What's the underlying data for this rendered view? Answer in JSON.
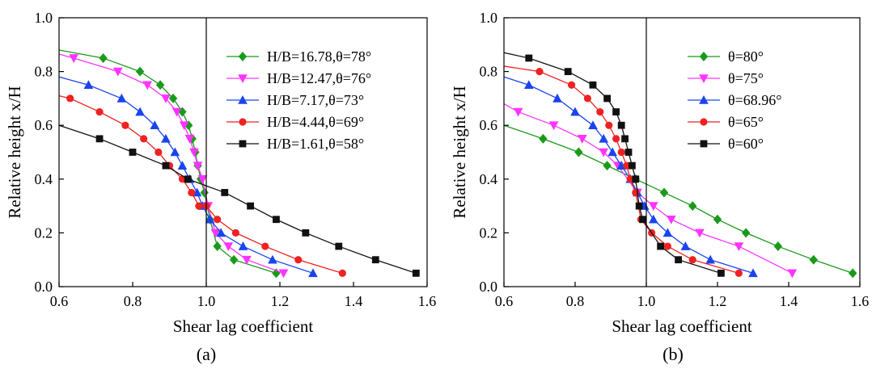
{
  "chart_data": [
    {
      "type": "line",
      "caption": "(a)",
      "xlabel": "Shear lag coefficient",
      "ylabel": "Relative height x/H",
      "xlim": [
        0.6,
        1.6
      ],
      "ylim": [
        0.0,
        1.0
      ],
      "xticks": [
        "0.6",
        "0.8",
        "1.0",
        "1.2",
        "1.4",
        "1.6"
      ],
      "yticks": [
        "0.0",
        "0.2",
        "0.4",
        "0.6",
        "0.8",
        "1.0"
      ],
      "reference_line_x": 1.0,
      "grid": false,
      "legend_position": "top-right",
      "series": [
        {
          "name": "H/B=16.78,θ=78°",
          "color": "#1a9a1a",
          "marker": "diamond",
          "x": [
            0.6,
            0.72,
            0.82,
            0.875,
            0.91,
            0.935,
            0.952,
            0.962,
            0.97,
            0.977,
            0.985,
            0.995,
            1.01,
            1.03,
            1.075,
            1.19
          ],
          "y": [
            0.88,
            0.85,
            0.8,
            0.75,
            0.7,
            0.65,
            0.6,
            0.55,
            0.5,
            0.45,
            0.4,
            0.35,
            0.25,
            0.15,
            0.1,
            0.05
          ],
          "marked": [
            false,
            true,
            true,
            true,
            true,
            true,
            true,
            true,
            true,
            true,
            true,
            true,
            true,
            true,
            true,
            true
          ]
        },
        {
          "name": "H/B=12.47,θ=76°",
          "color": "#ff33ff",
          "marker": "triangle-down",
          "x": [
            0.6,
            0.64,
            0.76,
            0.84,
            0.89,
            0.92,
            0.94,
            0.955,
            0.967,
            0.977,
            0.99,
            1.005,
            1.025,
            1.06,
            1.11,
            1.21
          ],
          "y": [
            0.865,
            0.85,
            0.8,
            0.75,
            0.7,
            0.65,
            0.6,
            0.55,
            0.5,
            0.45,
            0.4,
            0.3,
            0.2,
            0.15,
            0.1,
            0.05
          ],
          "marked": [
            false,
            true,
            true,
            true,
            true,
            true,
            true,
            true,
            true,
            true,
            true,
            true,
            true,
            true,
            true,
            true
          ]
        },
        {
          "name": "H/B=7.17,θ=73°",
          "color": "#1a44ee",
          "marker": "triangle-up",
          "x": [
            0.6,
            0.68,
            0.77,
            0.82,
            0.86,
            0.89,
            0.915,
            0.935,
            0.955,
            0.975,
            0.99,
            1.01,
            1.04,
            1.1,
            1.18,
            1.29
          ],
          "y": [
            0.78,
            0.75,
            0.7,
            0.65,
            0.6,
            0.55,
            0.5,
            0.45,
            0.4,
            0.35,
            0.3,
            0.25,
            0.2,
            0.15,
            0.1,
            0.05
          ],
          "marked": [
            false,
            true,
            true,
            true,
            true,
            true,
            true,
            true,
            true,
            true,
            true,
            true,
            true,
            true,
            true,
            true
          ]
        },
        {
          "name": "H/B=4.44,θ=69°",
          "color": "#ee2222",
          "marker": "circle",
          "x": [
            0.6,
            0.63,
            0.71,
            0.78,
            0.83,
            0.87,
            0.9,
            0.935,
            0.96,
            0.98,
            1.0,
            1.03,
            1.08,
            1.16,
            1.25,
            1.37
          ],
          "y": [
            0.71,
            0.7,
            0.65,
            0.6,
            0.55,
            0.5,
            0.45,
            0.4,
            0.35,
            0.3,
            0.3,
            0.25,
            0.2,
            0.15,
            0.1,
            0.05
          ],
          "marked": [
            false,
            true,
            true,
            true,
            true,
            true,
            true,
            true,
            true,
            true,
            true,
            true,
            true,
            true,
            true,
            true
          ]
        },
        {
          "name": "H/B=1.61,θ=58°",
          "color": "#111111",
          "marker": "square",
          "x": [
            0.6,
            0.71,
            0.8,
            0.89,
            0.95,
            1.05,
            1.12,
            1.19,
            1.27,
            1.36,
            1.46,
            1.57
          ],
          "y": [
            0.6,
            0.55,
            0.5,
            0.45,
            0.4,
            0.35,
            0.3,
            0.25,
            0.2,
            0.15,
            0.1,
            0.05
          ],
          "marked": [
            false,
            true,
            true,
            true,
            true,
            true,
            true,
            true,
            true,
            true,
            true,
            true
          ]
        }
      ]
    },
    {
      "type": "line",
      "caption": "(b)",
      "xlabel": "Shear lag coefficient",
      "ylabel": "Relative height x/H",
      "xlim": [
        0.6,
        1.6
      ],
      "ylim": [
        0.0,
        1.0
      ],
      "xticks": [
        "0.6",
        "0.8",
        "1.0",
        "1.2",
        "1.4",
        "1.6"
      ],
      "yticks": [
        "0.0",
        "0.2",
        "0.4",
        "0.6",
        "0.8",
        "1.0"
      ],
      "reference_line_x": 1.0,
      "grid": false,
      "legend_position": "top-right",
      "series": [
        {
          "name": "θ=80°",
          "color": "#1a9a1a",
          "marker": "diamond",
          "x": [
            0.6,
            0.71,
            0.81,
            0.89,
            0.97,
            1.05,
            1.13,
            1.2,
            1.28,
            1.37,
            1.47,
            1.58
          ],
          "y": [
            0.6,
            0.55,
            0.5,
            0.45,
            0.4,
            0.35,
            0.3,
            0.25,
            0.2,
            0.15,
            0.1,
            0.05
          ],
          "marked": [
            false,
            true,
            true,
            true,
            true,
            true,
            true,
            true,
            true,
            true,
            true,
            true
          ]
        },
        {
          "name": "θ=75°",
          "color": "#ff33ff",
          "marker": "triangle-down",
          "x": [
            0.6,
            0.64,
            0.74,
            0.82,
            0.88,
            0.92,
            0.975,
            1.02,
            1.07,
            1.15,
            1.26,
            1.41
          ],
          "y": [
            0.68,
            0.65,
            0.6,
            0.55,
            0.5,
            0.45,
            0.35,
            0.3,
            0.25,
            0.2,
            0.15,
            0.05
          ],
          "marked": [
            false,
            true,
            true,
            true,
            true,
            true,
            true,
            true,
            true,
            true,
            true,
            true
          ]
        },
        {
          "name": "θ=68.96°",
          "color": "#1a44ee",
          "marker": "triangle-up",
          "x": [
            0.6,
            0.67,
            0.75,
            0.8,
            0.85,
            0.88,
            0.905,
            0.93,
            0.955,
            0.975,
            0.995,
            1.02,
            1.06,
            1.11,
            1.18,
            1.3
          ],
          "y": [
            0.78,
            0.75,
            0.7,
            0.65,
            0.6,
            0.55,
            0.5,
            0.45,
            0.4,
            0.35,
            0.3,
            0.25,
            0.2,
            0.15,
            0.1,
            0.05
          ],
          "marked": [
            false,
            true,
            true,
            true,
            true,
            true,
            true,
            true,
            true,
            true,
            true,
            true,
            true,
            true,
            true,
            true
          ]
        },
        {
          "name": "θ=65°",
          "color": "#ee2222",
          "marker": "circle",
          "x": [
            0.6,
            0.7,
            0.79,
            0.835,
            0.87,
            0.895,
            0.915,
            0.93,
            0.945,
            0.955,
            0.97,
            0.985,
            1.015,
            1.06,
            1.13,
            1.26
          ],
          "y": [
            0.82,
            0.8,
            0.75,
            0.7,
            0.65,
            0.6,
            0.55,
            0.5,
            0.45,
            0.4,
            0.35,
            0.25,
            0.2,
            0.15,
            0.1,
            0.05
          ],
          "marked": [
            false,
            true,
            true,
            true,
            true,
            true,
            true,
            true,
            true,
            true,
            true,
            true,
            true,
            true,
            true,
            true
          ]
        },
        {
          "name": "θ=60°",
          "color": "#111111",
          "marker": "square",
          "x": [
            0.6,
            0.67,
            0.78,
            0.85,
            0.89,
            0.915,
            0.93,
            0.94,
            0.95,
            0.96,
            0.97,
            0.98,
            0.99,
            1.04,
            1.09,
            1.21
          ],
          "y": [
            0.87,
            0.85,
            0.8,
            0.75,
            0.7,
            0.65,
            0.6,
            0.55,
            0.5,
            0.45,
            0.4,
            0.3,
            0.25,
            0.15,
            0.1,
            0.05
          ],
          "marked": [
            false,
            true,
            true,
            true,
            true,
            true,
            true,
            true,
            true,
            true,
            true,
            true,
            true,
            true,
            true,
            true
          ]
        }
      ]
    }
  ]
}
